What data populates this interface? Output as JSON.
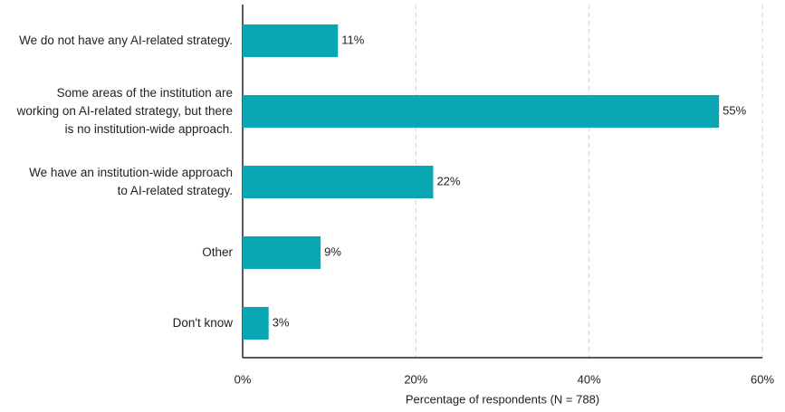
{
  "chart_data": {
    "type": "bar",
    "orientation": "horizontal",
    "categories": [
      "We do not have any AI-related strategy.",
      "Some areas of the institution are working on AI-related strategy, but there is no institution-wide approach.",
      "We have an institution-wide approach to AI-related strategy.",
      "Other",
      "Don't know"
    ],
    "values": [
      11,
      55,
      22,
      9,
      3
    ],
    "value_labels": [
      "11%",
      "55%",
      "22%",
      "9%",
      "3%"
    ],
    "color": "#0aa6b3",
    "xlabel": "Percentage of respondents (N = 788)",
    "xlim": [
      0,
      60
    ],
    "xticks": [
      {
        "value": 0,
        "label": "0%"
      },
      {
        "value": 20,
        "label": "20%"
      },
      {
        "value": 40,
        "label": "40%"
      },
      {
        "value": 60,
        "label": "60%"
      }
    ],
    "grid": true
  }
}
